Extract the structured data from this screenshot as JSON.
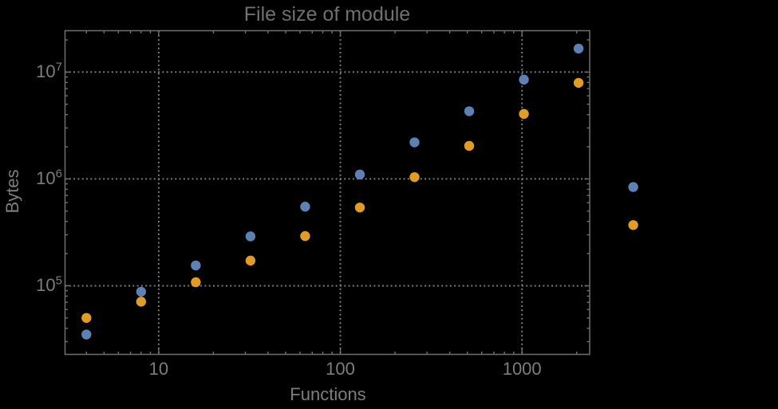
{
  "chart_data": {
    "type": "scatter",
    "title": "File size of module",
    "xlabel": "Functions",
    "ylabel": "Bytes",
    "x_scale": "log",
    "y_scale": "log",
    "grid": "dotted",
    "legend": "none",
    "x": [
      4,
      8,
      16,
      32,
      64,
      128,
      256,
      512,
      1024,
      2048,
      4096
    ],
    "series": [
      {
        "name": "series-1-blue",
        "color": "#5e81b5",
        "values": [
          35000,
          88000,
          155000,
          290000,
          550000,
          1100000,
          2200000,
          4300000,
          8500000,
          16600000,
          840000
        ]
      },
      {
        "name": "series-2-orange",
        "color": "#e19c24",
        "values": [
          50000,
          71000,
          108000,
          172000,
          292000,
          540000,
          1040000,
          2040000,
          4060000,
          7930000,
          370000
        ]
      }
    ],
    "x_ticks": [
      {
        "value": 10,
        "label": "10"
      },
      {
        "value": 100,
        "label": "100"
      },
      {
        "value": 1000,
        "label": "1000"
      }
    ],
    "y_ticks": [
      {
        "value": 100000,
        "base": "10",
        "exp": "5"
      },
      {
        "value": 1000000,
        "base": "10",
        "exp": "6"
      },
      {
        "value": 10000000,
        "base": "10",
        "exp": "7"
      }
    ],
    "x_range": [
      3.05,
      2358
    ],
    "y_range": [
      22800,
      24400000
    ],
    "colors": {
      "background": "#000000",
      "frame": "#6f6f6f",
      "grid": "#7a7a7a",
      "text": "#7d7d7d",
      "title": "#707070",
      "point_blue": "#5e81b5",
      "point_orange": "#e19c24"
    }
  }
}
